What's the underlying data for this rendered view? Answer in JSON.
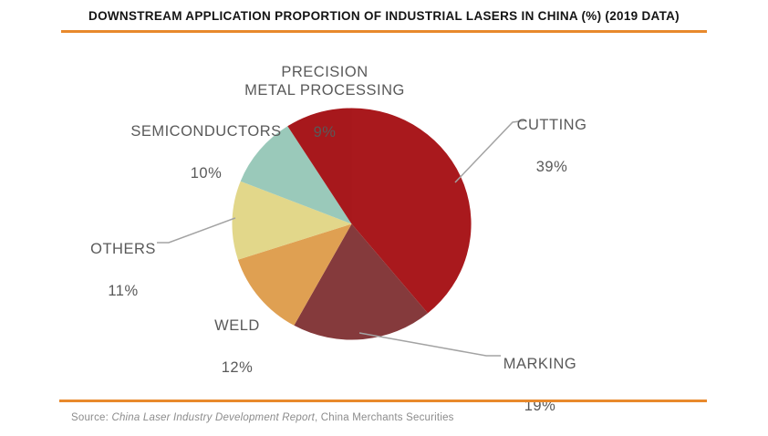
{
  "header": {
    "title": "DOWNSTREAM APPLICATION PROPORTION OF INDUSTRIAL LASERS IN CHINA (%) (2019 DATA)",
    "accent_color": "#E8892C"
  },
  "source": {
    "prefix": "Source: ",
    "report_italic": "China Laser Industry Development Report",
    "rest": ", China Merchants Securities"
  },
  "chart_data": {
    "type": "pie",
    "title": "DOWNSTREAM APPLICATION PROPORTION OF INDUSTRIAL LASERS IN CHINA (%) (2019 DATA)",
    "unit": "%",
    "year": "2019",
    "start_angle_deg": 0,
    "direction": "clockwise",
    "legend": "none",
    "label_style": "outside-with-leader-lines",
    "label_text_color": "#595959",
    "leader_line_color": "#A3A3A3",
    "slices": [
      {
        "label": "CUTTING",
        "value": 39,
        "pct_label": "39%",
        "color": "#A9191D"
      },
      {
        "label": "MARKING",
        "value": 19,
        "pct_label": "19%",
        "color": "#853A3C"
      },
      {
        "label": "WELD",
        "value": 12,
        "pct_label": "12%",
        "color": "#DFA052"
      },
      {
        "label": "OTHERS",
        "value": 11,
        "pct_label": "11%",
        "color": "#E2D78A"
      },
      {
        "label": "SEMICONDUCTORS",
        "value": 10,
        "pct_label": "10%",
        "color": "#9AC9BA"
      },
      {
        "label": "PRECISION\nMETAL PROCESSING",
        "value": 9,
        "pct_label": "9%",
        "color": "#A7181C"
      }
    ]
  }
}
